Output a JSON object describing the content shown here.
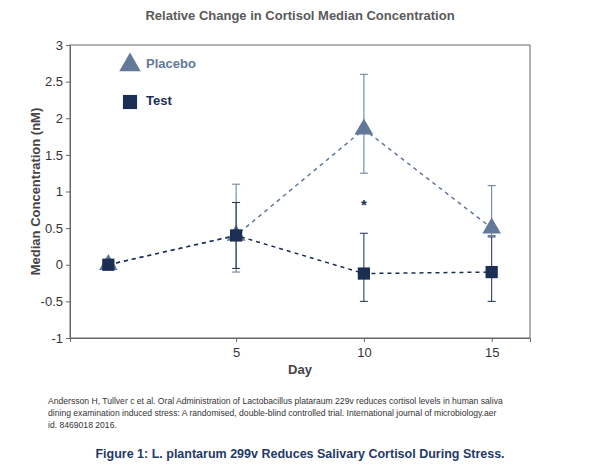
{
  "chart_data": {
    "type": "line",
    "title": "Relative Change in Cortisol Median Concentration",
    "y_label": "Median Concentration (nM)",
    "x_label": "Day",
    "x": [
      0,
      5,
      10,
      15
    ],
    "xlim": [
      -1.5,
      16.5
    ],
    "xticks": [
      5,
      10,
      15
    ],
    "ylim": [
      -1,
      3
    ],
    "yticks": [
      -1,
      -0.5,
      0,
      0.5,
      1,
      1.5,
      2,
      2.5,
      3
    ],
    "grid": false,
    "legend": "upper left",
    "series": [
      {
        "name": "Placebo",
        "color": "#62799a",
        "marker": "triangle",
        "line_style": "dashed",
        "values": [
          0,
          0.4,
          1.85,
          0.5
        ],
        "error_plus": [
          null,
          0.7,
          0.75,
          0.58
        ],
        "error_minus": [
          null,
          0.5,
          0.6,
          0.1
        ]
      },
      {
        "name": "Test",
        "color": "#1b2f55",
        "marker": "square",
        "line_style": "dashed",
        "values": [
          0,
          0.4,
          -0.12,
          -0.1
        ],
        "error_plus": [
          null,
          0.45,
          0.55,
          0.48
        ],
        "error_minus": [
          null,
          0.45,
          0.38,
          0.4
        ]
      }
    ],
    "annotations": [
      {
        "text": "*",
        "x": 10,
        "y": 0.8
      }
    ],
    "source": [
      "Andersson H, Tullver c et al. Oral Administration of Lactobacillus plataraum 229v reduces cortisol levels in human saliva",
      "dining examination induced stress: A randomised, double-blind controlled trial. International journal of microbiology.aer",
      "id. 8469018 2016."
    ],
    "caption": "Figure 1: L. plantarum 299v Reduces Salivary Cortisol During Stress."
  }
}
